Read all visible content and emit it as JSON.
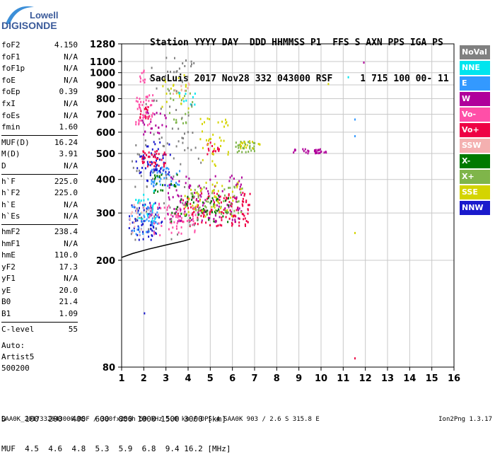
{
  "logo": {
    "line1": "Lowell",
    "line2": "DIGISONDE"
  },
  "header": {
    "line1": "Station YYYY DAY  DDD HHMMSS P1  FFS S AXN PPS IGA PS",
    "line2": "SaoLuis 2017 Nov28 332 043000 RSF     1 715 100 00- 11"
  },
  "params": {
    "group1": [
      {
        "label": "foF2",
        "value": "4.150"
      },
      {
        "label": "foF1",
        "value": "N/A"
      },
      {
        "label": "foF1p",
        "value": "N/A"
      },
      {
        "label": "foE",
        "value": "N/A"
      },
      {
        "label": "foEp",
        "value": "0.39"
      },
      {
        "label": "fxI",
        "value": "N/A"
      },
      {
        "label": "foEs",
        "value": "N/A"
      },
      {
        "label": "fmin",
        "value": "1.60"
      }
    ],
    "group2": [
      {
        "label": "MUF(D)",
        "value": "16.24"
      },
      {
        "label": "M(D)",
        "value": "3.91"
      },
      {
        "label": "D",
        "value": "N/A"
      }
    ],
    "group3": [
      {
        "label": "h`F",
        "value": "225.0"
      },
      {
        "label": "h`F2",
        "value": "225.0"
      },
      {
        "label": "h`E",
        "value": "N/A"
      },
      {
        "label": "h`Es",
        "value": "N/A"
      }
    ],
    "group4": [
      {
        "label": "hmF2",
        "value": "238.4"
      },
      {
        "label": "hmF1",
        "value": "N/A"
      },
      {
        "label": "hmE",
        "value": "110.0"
      },
      {
        "label": "yF2",
        "value": "17.3"
      },
      {
        "label": "yF1",
        "value": "N/A"
      },
      {
        "label": "yE",
        "value": "20.0"
      },
      {
        "label": "B0",
        "value": "21.4"
      },
      {
        "label": "B1",
        "value": "1.09"
      }
    ],
    "group5": [
      {
        "label": "C-level",
        "value": "55"
      }
    ]
  },
  "auto": {
    "line1": "Auto:",
    "line2": "Artist5",
    "line3": "500200"
  },
  "legend": [
    {
      "label": "NoVal",
      "color": "#808080"
    },
    {
      "label": "NNE",
      "color": "#00e5ee"
    },
    {
      "label": "E",
      "color": "#3399ff"
    },
    {
      "label": "W",
      "color": "#b0009b"
    },
    {
      "label": "Vo-",
      "color": "#ff4fa8"
    },
    {
      "label": "Vo+",
      "color": "#ee0044"
    },
    {
      "label": "SSW",
      "color": "#f4b0b0"
    },
    {
      "label": "X-",
      "color": "#007a00"
    },
    {
      "label": "X+",
      "color": "#7fb54a"
    },
    {
      "label": "SSE",
      "color": "#d4d400"
    },
    {
      "label": "NNW",
      "color": "#1a1acc"
    }
  ],
  "muf_table": {
    "line1": "D    100  200  400  600  800 1000 1500 3000 [km]",
    "line2": "MUF  4.5  4.6  4.8  5.3  5.9  6.8  9.4 16.2 [MHz]"
  },
  "footer": {
    "left": "SAA0K_2017332043000.RSF / 300fx256h 50 kHz 5.0 km / DPS-4 SAA0K 903 / 2.6 S 315.8 E",
    "right": "Ion2Png 1.3.17"
  },
  "chart_data": {
    "type": "scatter",
    "title": "",
    "xlabel": "",
    "ylabel": "",
    "xlim": [
      1,
      16
    ],
    "ylim": [
      80,
      1280
    ],
    "y_scale": "log",
    "x_ticks": [
      1,
      2,
      3,
      4,
      5,
      6,
      7,
      8,
      9,
      10,
      11,
      12,
      13,
      14,
      15,
      16
    ],
    "y_ticks": [
      80,
      200,
      300,
      400,
      500,
      600,
      700,
      800,
      900,
      1000,
      1100,
      1280
    ],
    "grid": true,
    "legend_position": "right",
    "trace": {
      "x": [
        1.0,
        1.5,
        2.2,
        3.0,
        3.8,
        4.1
      ],
      "y": [
        205,
        212,
        220,
        228,
        236,
        240
      ]
    },
    "series": [
      {
        "color": "#1a1acc",
        "clusters": [
          [
            1.3,
            2.8,
            240,
            330,
            70
          ],
          [
            2.0,
            3.2,
            380,
            560,
            40
          ],
          [
            1.6,
            2.8,
            420,
            500,
            25
          ]
        ]
      },
      {
        "color": "#3399ff",
        "clusters": [
          [
            1.4,
            2.6,
            250,
            320,
            40
          ],
          [
            2.3,
            3.7,
            380,
            450,
            35
          ]
        ]
      },
      {
        "color": "#ee0044",
        "clusters": [
          [
            3.5,
            6.8,
            270,
            360,
            130
          ],
          [
            1.9,
            3.0,
            450,
            520,
            40
          ],
          [
            1.8,
            2.3,
            680,
            760,
            15
          ],
          [
            4.8,
            5.4,
            500,
            560,
            15
          ]
        ]
      },
      {
        "color": "#ff4fa8",
        "clusters": [
          [
            1.6,
            2.4,
            640,
            840,
            45
          ],
          [
            2.2,
            4.4,
            250,
            330,
            70
          ],
          [
            1.8,
            2.1,
            920,
            1030,
            10
          ]
        ]
      },
      {
        "color": "#b0009b",
        "clusters": [
          [
            3.0,
            6.5,
            280,
            420,
            110
          ],
          [
            1.8,
            3.0,
            590,
            720,
            25
          ],
          [
            8.6,
            10.2,
            505,
            525,
            30
          ]
        ]
      },
      {
        "color": "#007a00",
        "clusters": [
          [
            3.2,
            5.8,
            280,
            360,
            55
          ],
          [
            2.3,
            3.5,
            360,
            430,
            20
          ]
        ]
      },
      {
        "color": "#7fb54a",
        "clusters": [
          [
            4.0,
            6.5,
            300,
            380,
            45
          ],
          [
            6.1,
            7.0,
            510,
            560,
            30
          ],
          [
            3.0,
            4.2,
            650,
            880,
            25
          ]
        ]
      },
      {
        "color": "#d4d400",
        "clusters": [
          [
            3.8,
            6.4,
            290,
            400,
            45
          ],
          [
            4.5,
            5.8,
            450,
            720,
            35
          ],
          [
            6.3,
            7.3,
            520,
            560,
            15
          ],
          [
            2.8,
            4.0,
            720,
            1000,
            20
          ]
        ]
      },
      {
        "color": "#00e5ee",
        "clusters": [
          [
            1.6,
            2.6,
            280,
            380,
            25
          ],
          [
            3.5,
            4.3,
            760,
            860,
            10
          ]
        ]
      },
      {
        "color": "#f4b0b0",
        "clusters": [
          [
            1.3,
            2.2,
            250,
            330,
            20
          ],
          [
            3.3,
            4.2,
            780,
            920,
            10
          ]
        ]
      },
      {
        "color": "#808080",
        "clusters": [
          [
            1.4,
            4.6,
            240,
            560,
            55
          ],
          [
            1.9,
            4.2,
            560,
            1100,
            30
          ],
          [
            2.8,
            4.3,
            950,
            1150,
            15
          ]
        ]
      }
    ],
    "isolated_points": [
      {
        "x": 11.5,
        "y": 675,
        "color": "#3399ff"
      },
      {
        "x": 11.5,
        "y": 585,
        "color": "#3399ff"
      },
      {
        "x": 11.2,
        "y": 970,
        "color": "#00e5ee"
      },
      {
        "x": 11.9,
        "y": 1100,
        "color": "#b0009b"
      },
      {
        "x": 10.3,
        "y": 915,
        "color": "#d4d400"
      },
      {
        "x": 11.5,
        "y": 255,
        "color": "#d4d400"
      },
      {
        "x": 11.5,
        "y": 87,
        "color": "#ee0044"
      },
      {
        "x": 2.0,
        "y": 128,
        "color": "#1a1acc"
      }
    ]
  }
}
